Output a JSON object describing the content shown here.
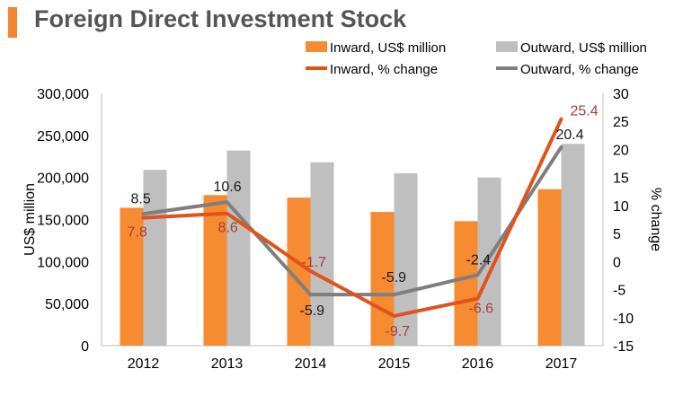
{
  "colors": {
    "inward_bar": "#f68b32",
    "outward_bar": "#bfbfbf",
    "inward_line": "#e0531a",
    "outward_line": "#7f7f7f",
    "inward_label": "#a43f36",
    "outward_label": "#1a1a1a",
    "axis": "#bfbfbf",
    "text": "#000000"
  },
  "chart_data": {
    "type": "bar",
    "title": "Foreign Direct Investment Stock",
    "categories": [
      "2012",
      "2013",
      "2014",
      "2015",
      "2016",
      "2017"
    ],
    "ylabel": "US$ million",
    "y2label": "% change",
    "ylim": [
      0,
      300000
    ],
    "y2lim": [
      -15,
      30
    ],
    "yticks": [
      "0",
      "50,000",
      "100,000",
      "150,000",
      "200,000",
      "250,000",
      "300,000"
    ],
    "y2ticks": [
      "-15",
      "-10",
      "-5",
      "0",
      "5",
      "10",
      "15",
      "20",
      "25",
      "30"
    ],
    "legend_position": "top",
    "series": [
      {
        "name": "Inward, US$ million",
        "kind": "bar",
        "axis": "left",
        "values": [
          164000,
          179000,
          176000,
          159000,
          148000,
          186000
        ]
      },
      {
        "name": "Outward, US$ million",
        "kind": "bar",
        "axis": "left",
        "values": [
          209000,
          232000,
          218000,
          205000,
          200000,
          240000
        ]
      },
      {
        "name": "Inward, % change",
        "kind": "line",
        "axis": "right",
        "values": [
          7.8,
          8.6,
          -1.7,
          -9.7,
          -6.6,
          25.4
        ],
        "labels": [
          "7.8",
          "8.6",
          "-1.7",
          "-9.7",
          "-6.6",
          "25.4"
        ]
      },
      {
        "name": "Outward, % change",
        "kind": "line",
        "axis": "right",
        "values": [
          8.5,
          10.6,
          -5.9,
          -5.9,
          -2.4,
          20.4
        ],
        "labels": [
          "8.5",
          "10.6",
          "-5.9",
          "-5.9",
          "-2.4",
          "20.4"
        ]
      }
    ]
  }
}
